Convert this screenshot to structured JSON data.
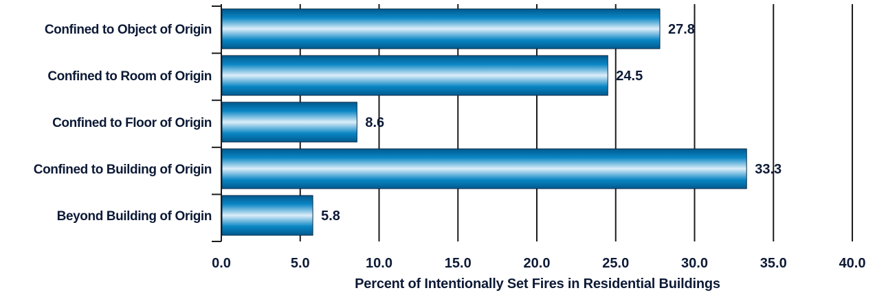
{
  "chart_data": {
    "type": "bar",
    "orientation": "horizontal",
    "categories": [
      "Confined to Object of Origin",
      "Confined to Room of Origin",
      "Confined to Floor of Origin",
      "Confined to Building of Origin",
      "Beyond Building of Origin"
    ],
    "values": [
      27.8,
      24.5,
      8.6,
      33.3,
      5.8
    ],
    "value_labels": [
      "27.8",
      "24.5",
      "8.6",
      "33.3",
      "5.8"
    ],
    "xlabel": "Percent of Intentionally Set Fires in Residential Buildings",
    "ylabel": "",
    "title": "",
    "xlim": [
      0,
      40
    ],
    "x_ticks": [
      0,
      5,
      10,
      15,
      20,
      25,
      30,
      35,
      40
    ],
    "x_tick_labels": [
      "0.0",
      "5.0",
      "10.0",
      "15.0",
      "20.0",
      "25.0",
      "30.0",
      "35.0",
      "40.0"
    ],
    "grid": "vertical",
    "legend": "none",
    "colors": {
      "bar_dark": "#005a8e",
      "bar_mid": "#0a86c4",
      "bar_light": "#dceefa",
      "text": "#0d1a36",
      "grid": "#1a1a1a"
    }
  }
}
